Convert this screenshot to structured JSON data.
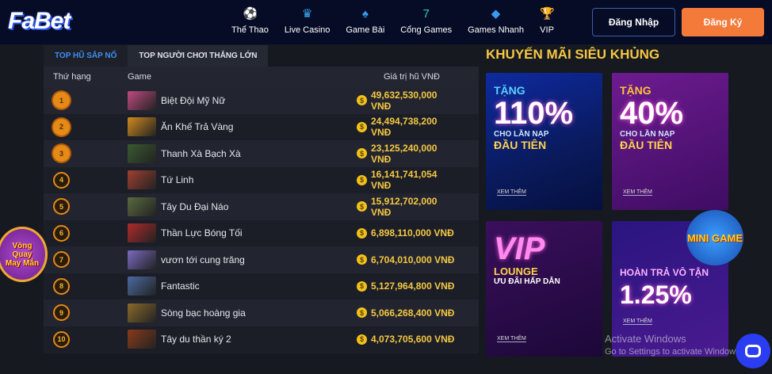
{
  "header": {
    "logo": "FaBet",
    "nav": [
      {
        "label": "Thể Thao",
        "icon": "soccer-ball-icon",
        "glyph": "⚽"
      },
      {
        "label": "Live Casino",
        "icon": "dealer-icon",
        "glyph": "♛"
      },
      {
        "label": "Game Bài",
        "icon": "spade-icon",
        "glyph": "♠"
      },
      {
        "label": "Cổng Games",
        "icon": "seven-icon",
        "glyph": "7"
      },
      {
        "label": "Games Nhanh",
        "icon": "gem-icon",
        "glyph": "◆"
      },
      {
        "label": "VIP",
        "icon": "trophy-icon",
        "glyph": "🏆"
      }
    ],
    "login": "Đăng Nhập",
    "register": "Đăng Ký"
  },
  "jackpot": {
    "tabs": [
      "TOP HŨ SẮP NỔ",
      "TOP NGƯỜI CHƠI THẮNG LỚN"
    ],
    "active_tab": 0,
    "columns": [
      "Thứ hạng",
      "Game",
      "Giá trị hũ VNĐ"
    ],
    "rows": [
      {
        "rank": "1",
        "game": "Biệt Đội Mỹ Nữ",
        "value": "49,632,530,000 VNĐ",
        "thumb": "#c04a80"
      },
      {
        "rank": "2",
        "game": "Ăn Khế Trả Vàng",
        "value": "24,494,738,200 VNĐ",
        "thumb": "#d08a20"
      },
      {
        "rank": "3",
        "game": "Thanh Xà Bạch Xà",
        "value": "23,125,240,000 VNĐ",
        "thumb": "#3a5a30"
      },
      {
        "rank": "4",
        "game": "Tứ Linh",
        "value": "16,141,741,054 VNĐ",
        "thumb": "#a04030"
      },
      {
        "rank": "5",
        "game": "Tây Du Đại Náo",
        "value": "15,912,702,000 VNĐ",
        "thumb": "#5a6a40"
      },
      {
        "rank": "6",
        "game": "Thần Lực Bóng Tối",
        "value": "6,898,110,000 VNĐ",
        "thumb": "#b02a2a"
      },
      {
        "rank": "7",
        "game": "vươn tới cung trăng",
        "value": "6,704,010,000 VNĐ",
        "thumb": "#7a6ac0"
      },
      {
        "rank": "8",
        "game": "Fantastic",
        "value": "5,127,964,800 VNĐ",
        "thumb": "#4a6aa0"
      },
      {
        "rank": "9",
        "game": "Sòng bạc hoàng gia",
        "value": "5,066,268,400 VNĐ",
        "thumb": "#8a6a2a"
      },
      {
        "rank": "10",
        "game": "Tây du thần ký 2",
        "value": "4,073,705,600 VNĐ",
        "thumb": "#8a3a1a"
      }
    ]
  },
  "promo": {
    "title": "KHUYẾN MÃI SIÊU KHỦNG",
    "cards": [
      {
        "top": "TẶNG",
        "big": "110%",
        "sub": "CHO LẦN NẠP",
        "sub2": "ĐẦU TIÊN",
        "more": "XEM THÊM"
      },
      {
        "top": "TẶNG",
        "big": "40%",
        "sub": "CHO LẦN NẠP",
        "sub2": "ĐẦU TIÊN",
        "more": "XEM THÊM"
      },
      {
        "top": "",
        "big": "VIP",
        "sub": "LOUNGE",
        "sub2": "ƯU ĐÃI HẤP DẪN",
        "more": "XEM THÊM"
      },
      {
        "top": "",
        "big": "1.25%",
        "sub": "HOÀN TRẢ VÔ TẬN",
        "sub2": "",
        "more": "XEM THÊM"
      }
    ]
  },
  "floating": {
    "wheel": "Vòng Quay May Mắn",
    "minigame": "MINI GAME"
  },
  "watermark": {
    "line1": "Activate Windows",
    "line2": "Go to Settings to activate Windows."
  },
  "colors": {
    "accent": "#f47a3a",
    "gold": "#f5c842",
    "tab_active": "#3c8ef0"
  }
}
